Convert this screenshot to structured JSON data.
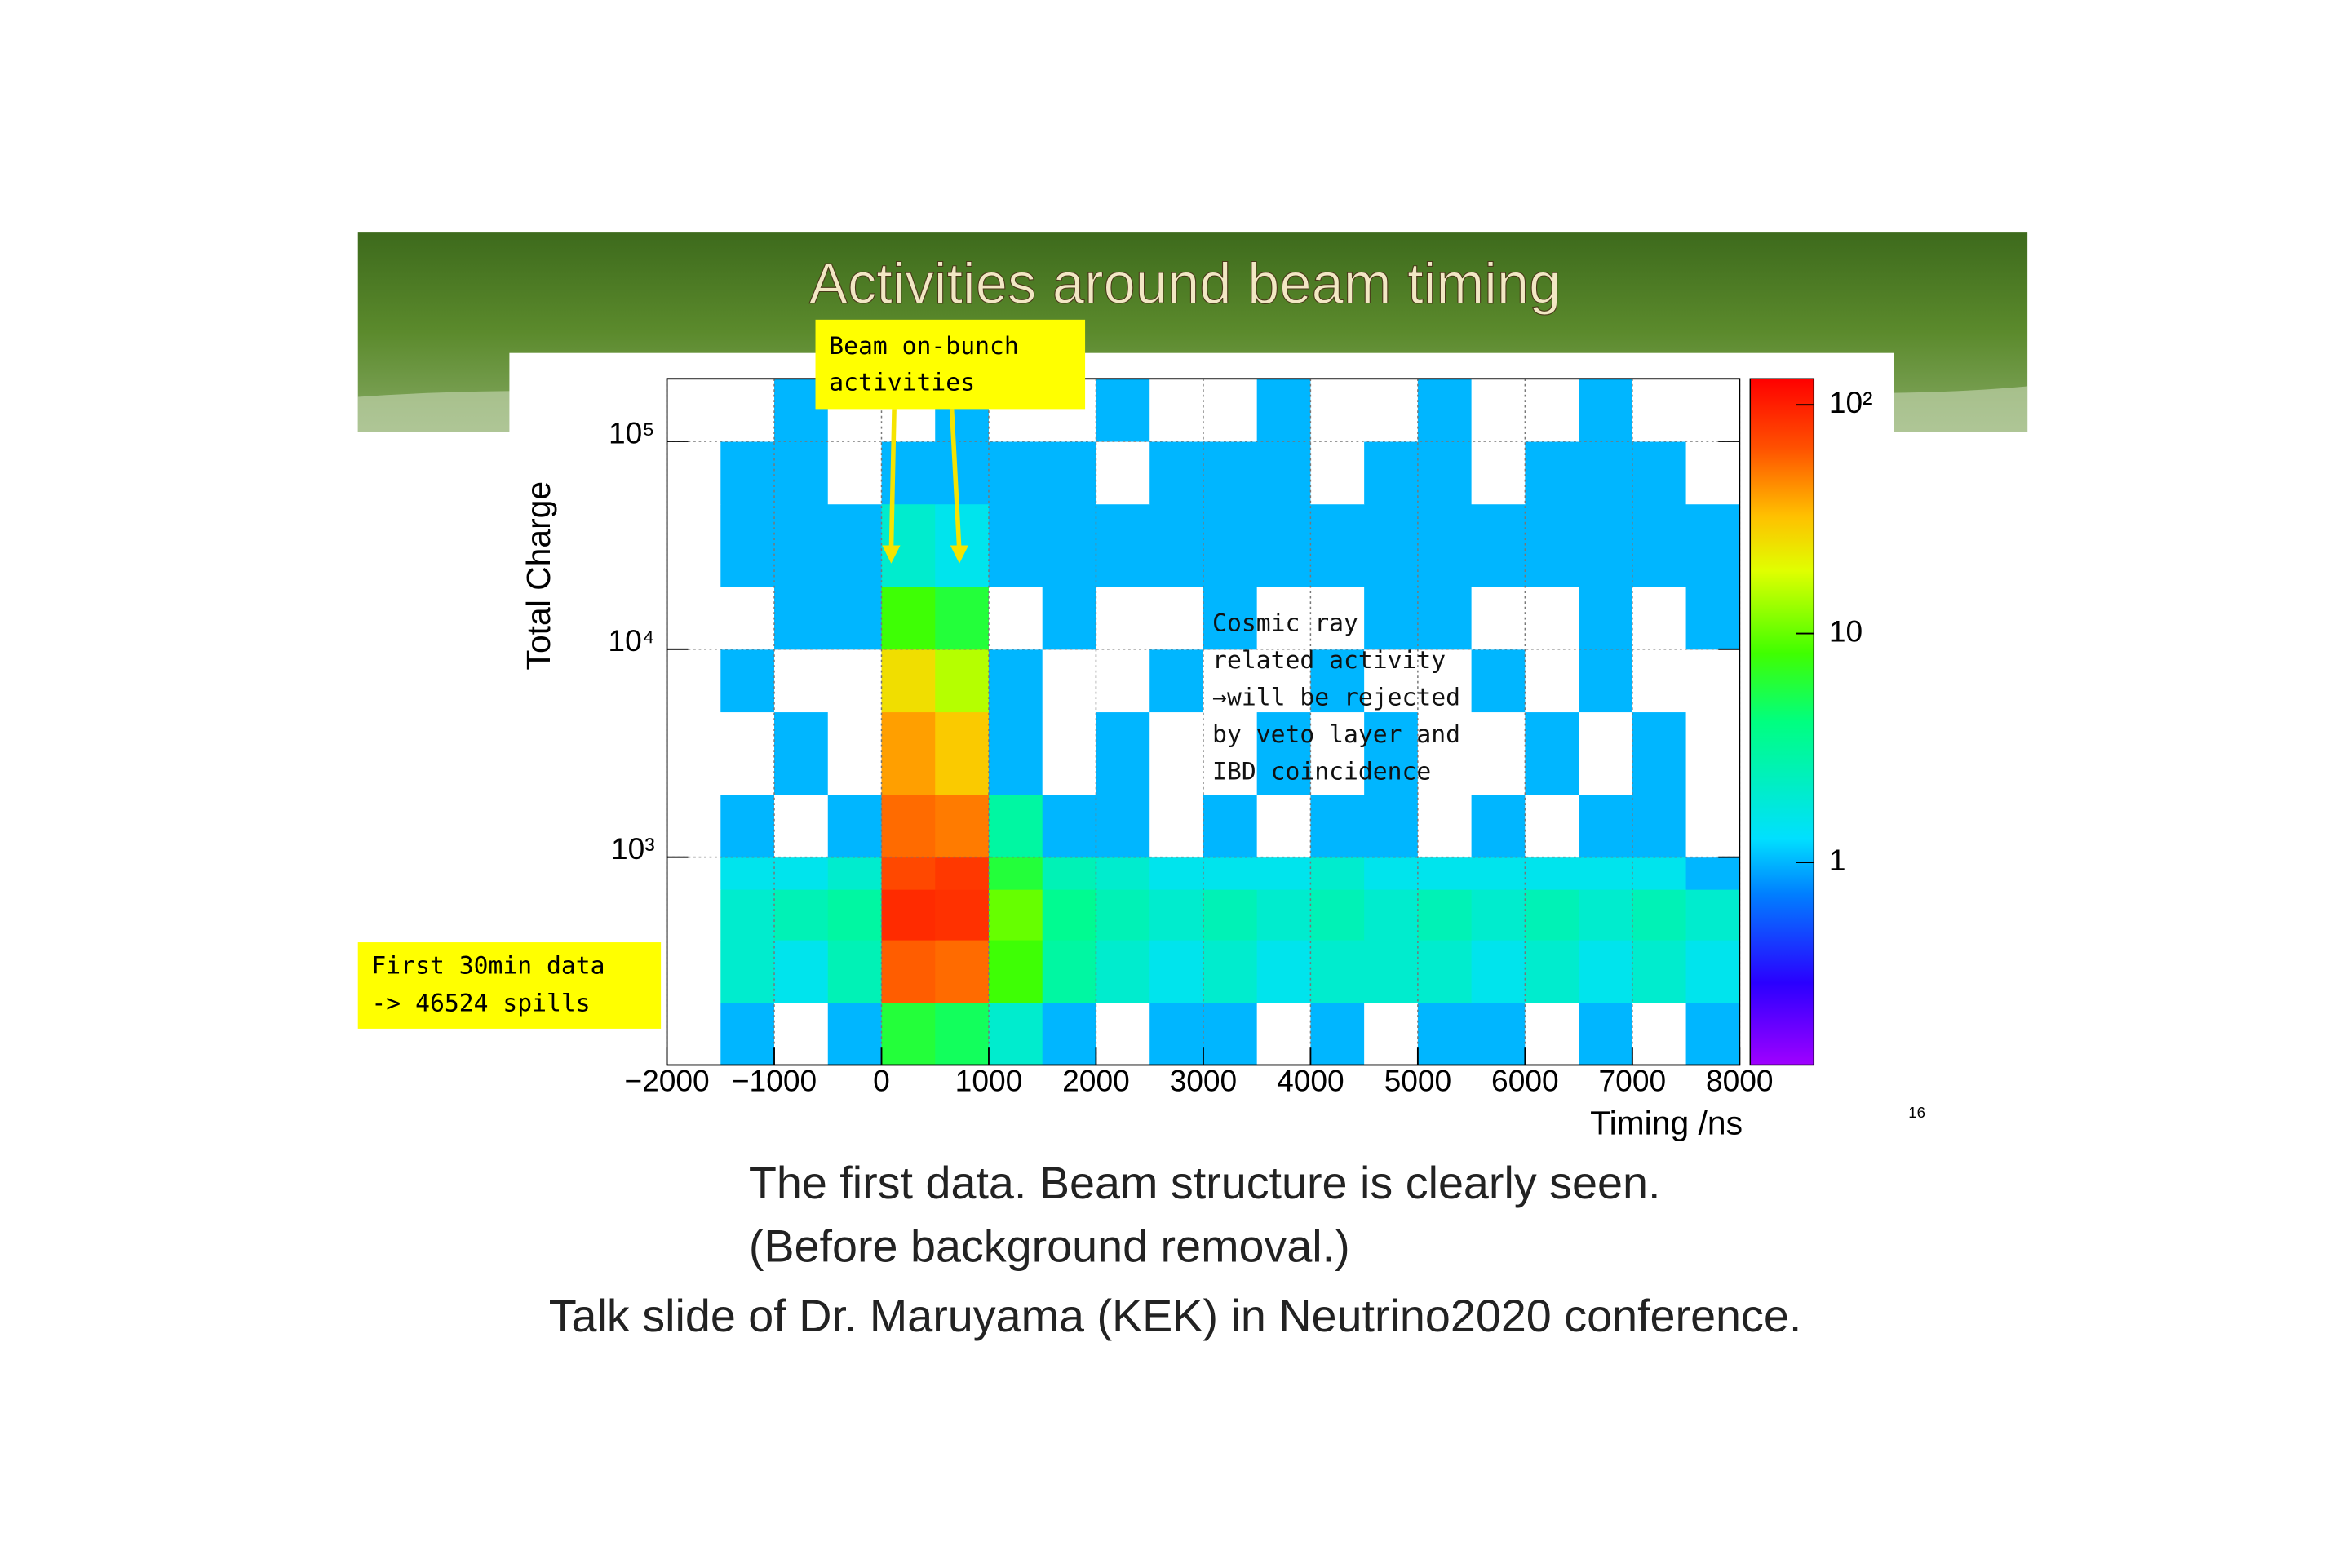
{
  "slide": {
    "title": "Activities around beam timing",
    "page_number": "16",
    "beam_note": [
      "Beam on-bunch",
      "activities"
    ],
    "data_note": [
      "First 30min data",
      "-> 46524 spills"
    ],
    "cosmic_note": [
      "Cosmic ray",
      "related activity",
      "→will be rejected",
      " by veto layer and",
      " IBD coincidence"
    ]
  },
  "chart_data": {
    "type": "heatmap",
    "x_label": "Timing /ns",
    "y_label": "Total Charge",
    "xlim": [
      -2000,
      8000
    ],
    "xticks": [
      {
        "value": -2000,
        "label": "−2000"
      },
      {
        "value": -1000,
        "label": "−1000"
      },
      0,
      1000,
      2000,
      3000,
      4000,
      5000,
      6000,
      7000,
      8000
    ],
    "ylim": [
      100,
      200000
    ],
    "ylog": true,
    "yticks": [
      {
        "value": 1000,
        "label": "10³"
      },
      {
        "value": 10000,
        "label": "10⁴"
      },
      {
        "value": 100000,
        "label": "10⁵"
      }
    ],
    "grid": true,
    "xbins": [
      -2000,
      -1500,
      -1000,
      -500,
      0,
      500,
      1000,
      1500,
      2000,
      2500,
      3000,
      3500,
      4000,
      4500,
      5000,
      5500,
      6000,
      6500,
      7000,
      7500,
      8000
    ],
    "ybins": [
      100,
      200,
      400,
      700,
      1000,
      2000,
      5000,
      10000,
      20000,
      50000,
      100000,
      200000
    ],
    "values": [
      [
        0,
        1,
        0,
        1,
        6,
        5,
        2,
        1,
        0,
        1,
        1,
        0,
        1,
        0,
        1,
        1,
        0,
        1,
        0,
        1
      ],
      [
        0,
        2,
        1.5,
        2.5,
        60,
        55,
        8,
        3,
        2,
        1.5,
        2,
        1.5,
        2,
        2,
        2,
        1.5,
        2,
        1.5,
        2,
        1.5
      ],
      [
        0,
        2,
        2.5,
        3,
        90,
        85,
        10,
        3.5,
        2.5,
        2,
        2.5,
        2,
        2.5,
        2,
        2.5,
        2,
        2.5,
        2,
        2.5,
        2
      ],
      [
        0,
        1.5,
        1.5,
        2,
        70,
        80,
        6,
        2.5,
        2,
        1.5,
        1.5,
        1.5,
        2,
        1.5,
        1.5,
        1.5,
        1.5,
        1.5,
        1.5,
        1
      ],
      [
        0,
        1,
        0,
        1,
        55,
        50,
        3,
        1,
        1,
        0,
        1,
        0,
        1,
        1,
        0,
        1,
        0,
        1,
        1,
        0
      ],
      [
        0,
        0,
        1,
        0,
        40,
        30,
        1,
        0,
        1,
        0,
        0,
        1,
        0,
        1,
        0,
        0,
        1,
        0,
        1,
        0
      ],
      [
        0,
        1,
        0,
        0,
        25,
        15,
        1,
        0,
        0,
        1,
        0,
        0,
        1,
        0,
        0,
        1,
        0,
        1,
        0,
        0
      ],
      [
        0,
        0,
        1,
        1,
        8,
        6,
        0,
        1,
        0,
        0,
        1,
        0,
        0,
        1,
        1,
        0,
        0,
        1,
        0,
        1
      ],
      [
        0,
        1,
        1,
        1,
        2,
        1.5,
        1,
        1,
        1,
        1,
        1,
        1,
        1,
        1,
        1,
        1,
        1,
        1,
        1,
        1
      ],
      [
        0,
        1,
        1,
        0,
        1,
        1,
        1,
        1,
        0,
        1,
        1,
        1,
        0,
        1,
        1,
        0,
        1,
        1,
        1,
        0
      ],
      [
        0,
        0,
        1,
        0,
        0,
        1,
        0,
        0,
        1,
        0,
        0,
        1,
        0,
        0,
        1,
        0,
        0,
        1,
        0,
        0
      ]
    ],
    "zlim": [
      0.13,
      130
    ],
    "zlog": true,
    "zticks": [
      1,
      10,
      {
        "value": 100,
        "label": "10²"
      }
    ]
  },
  "caption": [
    "The first data. Beam structure is clearly seen.",
    "(Before background removal.)",
    "Talk slide of Dr. Maruyama (KEK) in Neutrino2020 conference."
  ]
}
